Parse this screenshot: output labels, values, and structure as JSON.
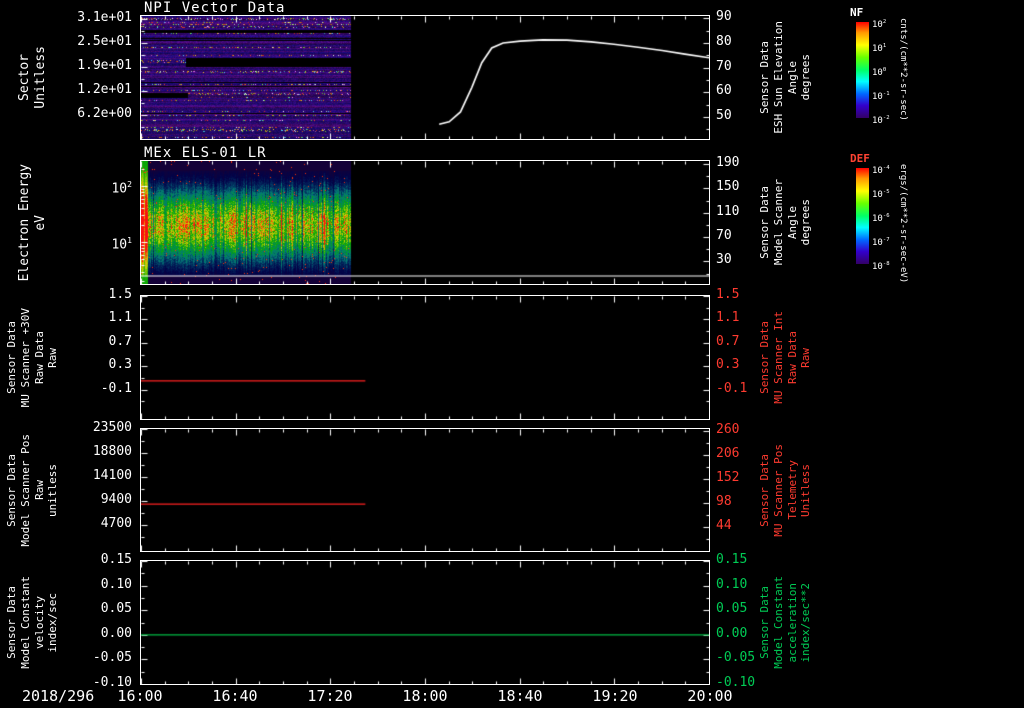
{
  "page": {
    "background": "#000000"
  },
  "chart_data": {
    "type": "multi-panel-timeseries",
    "xaxis": {
      "date_label": "2018/296",
      "tick_labels": [
        "16:00",
        "16:40",
        "17:20",
        "18:00",
        "18:40",
        "19:20",
        "20:00"
      ],
      "hours_range": [
        0,
        4
      ]
    },
    "colorbars": [
      {
        "name": "NF",
        "name_color": "#ffffff",
        "units": "cnts/(cm**2-sr-sec)",
        "tick_labels": [
          "10^2",
          "10^1",
          "10^0",
          "10^-1",
          "10^-2"
        ]
      },
      {
        "name": "DEF",
        "name_color": "#ff4433",
        "units": "ergs/(cm**2-sr-sec-eV)",
        "tick_labels": [
          "10^-4",
          "10^-5",
          "10^-6",
          "10^-7",
          "10^-8"
        ]
      }
    ],
    "panels": [
      {
        "id": "npi-vector",
        "title": "NPI Vector Data",
        "type": "heatmap+line",
        "left_axis": {
          "title_lines": [
            "Sector",
            "Unitless"
          ],
          "scale": "linear",
          "ylim": [
            0,
            31.8
          ],
          "ticks": [
            {
              "v": 6.2,
              "label": "6.2e+00"
            },
            {
              "v": 12.4,
              "label": "1.2e+01"
            },
            {
              "v": 18.6,
              "label": "1.9e+01"
            },
            {
              "v": 24.8,
              "label": "2.5e+01"
            },
            {
              "v": 31,
              "label": "3.1e+01"
            }
          ]
        },
        "right_axis": {
          "title_lines": [
            "Sensor Data",
            "ESH Sun Elevation",
            "Angle",
            "degrees"
          ],
          "scale": "linear",
          "ylim": [
            41,
            91
          ],
          "color": "#ffffff",
          "ticks": [
            {
              "v": 50,
              "label": "50"
            },
            {
              "v": 60,
              "label": "60"
            },
            {
              "v": 70,
              "label": "70"
            },
            {
              "v": 80,
              "label": "80"
            },
            {
              "v": 90,
              "label": "90"
            }
          ]
        },
        "heatmap": {
          "style": "npi",
          "colorbar": "NF",
          "t_start_hours": 0,
          "t_end_hours": 1.48
        },
        "lines": [
          {
            "name": "ESH Sun Elevation Angle",
            "axis": "right",
            "color": "#ffffff",
            "width": 1.6,
            "x_hours": [
              2.1,
              2.17,
              2.25,
              2.33,
              2.4,
              2.47,
              2.55,
              2.67,
              2.83,
              3.0,
              3.17,
              3.33,
              3.5,
              3.67,
              3.83,
              4.0
            ],
            "y": [
              47,
              48,
              52,
              62,
              72,
              78,
              80,
              80.8,
              81.3,
              81.2,
              80.5,
              79.5,
              78.3,
              77,
              75.5,
              74
            ]
          }
        ]
      },
      {
        "id": "mex-els-01-lr",
        "title": "MEx ELS-01 LR",
        "type": "heatmap",
        "left_axis": {
          "title_lines": [
            "Electron Energy",
            "eV"
          ],
          "scale": "log",
          "ylim": [
            1.8,
            280
          ],
          "ticks": [
            {
              "v": 10,
              "label": "10^1"
            },
            {
              "v": 100,
              "label": "10^2"
            }
          ]
        },
        "right_axis": {
          "title_lines": [
            "Sensor Data",
            "Model Scanner",
            "Angle",
            "degrees"
          ],
          "scale": "linear",
          "ylim": [
            -7,
            195
          ],
          "color": "#ffffff",
          "ticks": [
            {
              "v": 30,
              "label": "30"
            },
            {
              "v": 70,
              "label": "70"
            },
            {
              "v": 110,
              "label": "110"
            },
            {
              "v": 150,
              "label": "150"
            },
            {
              "v": 190,
              "label": "190"
            }
          ]
        },
        "heatmap": {
          "style": "els",
          "colorbar": "DEF",
          "t_start_hours": 0,
          "t_end_hours": 1.48
        },
        "lines": [
          {
            "name": "baseline",
            "axis": "left",
            "color": "#ffffff",
            "width": 1.2,
            "x_hours": [
              0,
              4
            ],
            "y": [
              2.5,
              2.5
            ]
          }
        ]
      },
      {
        "id": "mu-scanner-plus30v-raw",
        "type": "line",
        "left_axis": {
          "title_lines": [
            "Sensor Data",
            "MU Scanner +30V",
            "Raw Data",
            "Raw"
          ],
          "scale": "linear",
          "ylim": [
            -0.6,
            1.5
          ],
          "ticks": [
            {
              "v": -0.1,
              "label": "-0.1"
            },
            {
              "v": 0.3,
              "label": "0.3"
            },
            {
              "v": 0.7,
              "label": "0.7"
            },
            {
              "v": 1.1,
              "label": "1.1"
            },
            {
              "v": 1.5,
              "label": "1.5"
            }
          ]
        },
        "right_axis": {
          "title_lines": [
            "Sensor Data",
            "MU Scanner Int",
            "Raw Data",
            "Raw"
          ],
          "scale": "linear",
          "ylim": [
            -0.6,
            1.5
          ],
          "color": "#ff3b30",
          "ticks": [
            {
              "v": -0.1,
              "label": "-0.1"
            },
            {
              "v": 0.3,
              "label": "0.3"
            },
            {
              "v": 0.7,
              "label": "0.7"
            },
            {
              "v": 1.1,
              "label": "1.1"
            },
            {
              "v": 1.5,
              "label": "1.5"
            }
          ]
        },
        "lines": [
          {
            "name": "MU Scanner +30V Raw",
            "axis": "left",
            "color": "#ff2020",
            "width": 1.2,
            "x_hours": [
              0,
              1.58
            ],
            "y": [
              0.05,
              0.05
            ]
          }
        ]
      },
      {
        "id": "model-scanner-pos-raw",
        "type": "line",
        "left_axis": {
          "title_lines": [
            "Sensor Data",
            "Model Scanner Pos",
            "Raw",
            "unitless"
          ],
          "scale": "linear",
          "ylim": [
            -400,
            23500
          ],
          "ticks": [
            {
              "v": 4700,
              "label": "4700"
            },
            {
              "v": 9400,
              "label": "9400"
            },
            {
              "v": 14100,
              "label": "14100"
            },
            {
              "v": 18800,
              "label": "18800"
            },
            {
              "v": 23500,
              "label": "23500"
            }
          ]
        },
        "right_axis": {
          "title_lines": [
            "Sensor Data",
            "MU Scanner Pos",
            "Telemetry",
            "Unitless"
          ],
          "scale": "linear",
          "ylim": [
            -9,
            264
          ],
          "color": "#ff3b30",
          "ticks": [
            {
              "v": 44,
              "label": "44"
            },
            {
              "v": 98,
              "label": "98"
            },
            {
              "v": 152,
              "label": "152"
            },
            {
              "v": 206,
              "label": "206"
            },
            {
              "v": 260,
              "label": "260"
            }
          ]
        },
        "lines": [
          {
            "name": "Model Scanner Pos Raw",
            "axis": "left",
            "color": "#ff2020",
            "width": 1.2,
            "x_hours": [
              0,
              1.58
            ],
            "y": [
              8800,
              8800
            ]
          }
        ]
      },
      {
        "id": "model-constant-velocity",
        "type": "line",
        "left_axis": {
          "title_lines": [
            "Sensor Data",
            "Model Constant",
            "velocity",
            "index/sec"
          ],
          "scale": "linear",
          "ylim": [
            -0.1,
            0.15
          ],
          "ticks": [
            {
              "v": -0.1,
              "label": "-0.10"
            },
            {
              "v": -0.05,
              "label": "-0.05"
            },
            {
              "v": 0,
              "label": "0.00"
            },
            {
              "v": 0.05,
              "label": "0.05"
            },
            {
              "v": 0.1,
              "label": "0.10"
            },
            {
              "v": 0.15,
              "label": "0.15"
            }
          ]
        },
        "right_axis": {
          "title_lines": [
            "Sensor Data",
            "Model Constant",
            "acceleration",
            "index/sec**2"
          ],
          "scale": "linear",
          "ylim": [
            -0.1,
            0.15
          ],
          "color": "#00cc55",
          "ticks": [
            {
              "v": -0.1,
              "label": "-0.10"
            },
            {
              "v": -0.05,
              "label": "-0.05"
            },
            {
              "v": 0,
              "label": "0.00"
            },
            {
              "v": 0.05,
              "label": "0.05"
            },
            {
              "v": 0.1,
              "label": "0.10"
            },
            {
              "v": 0.15,
              "label": "0.15"
            }
          ]
        },
        "lines": [
          {
            "name": "Model Constant velocity",
            "axis": "left",
            "color": "#00bb44",
            "width": 1.3,
            "x_hours": [
              0,
              4
            ],
            "y": [
              0,
              0
            ]
          }
        ]
      }
    ]
  }
}
